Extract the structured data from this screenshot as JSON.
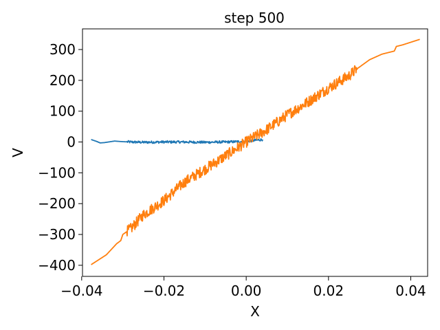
{
  "chart_data": {
    "type": "line",
    "title": "step 500",
    "xlabel": "X",
    "ylabel": "V",
    "xlim": [
      -0.0398,
      0.0441
    ],
    "ylim": [
      -436,
      367
    ],
    "grid": false,
    "legend": "none",
    "x_ticks": [
      -0.04,
      -0.02,
      0.0,
      0.02,
      0.04
    ],
    "x_tick_labels": [
      "−0.04",
      "−0.02",
      "0.00",
      "0.02",
      "0.04"
    ],
    "y_ticks": [
      -400,
      -300,
      -200,
      -100,
      0,
      100,
      200,
      300
    ],
    "y_tick_labels": [
      "−400",
      "−300",
      "−200",
      "−100",
      "0",
      "100",
      "200",
      "300"
    ],
    "series": [
      {
        "color": "#1f77b4",
        "noise": 4,
        "x": [
          -0.0377,
          -0.0364,
          -0.0355,
          -0.0345,
          -0.0335,
          -0.032,
          -0.03,
          -0.028,
          -0.025,
          -0.02,
          -0.015,
          -0.01,
          -0.005,
          0.0,
          0.002,
          0.004
        ],
        "y": [
          8,
          2,
          -3,
          -2,
          0,
          3,
          1,
          0,
          -1,
          0,
          0,
          -1,
          0,
          2,
          5,
          8
        ]
      },
      {
        "color": "#ff7f0e",
        "noise": 18,
        "x": [
          -0.0377,
          -0.034,
          -0.0315,
          -0.0305,
          -0.03,
          -0.028,
          -0.025,
          -0.02,
          -0.015,
          -0.01,
          -0.005,
          0.0,
          0.005,
          0.01,
          0.015,
          0.02,
          0.025,
          0.027,
          0.03,
          0.033,
          0.036,
          0.0365,
          0.038,
          0.0422
        ],
        "y": [
          -398,
          -366,
          -330,
          -320,
          -300,
          -281,
          -236,
          -190,
          -130,
          -88,
          -45,
          0,
          40,
          88,
          130,
          175,
          215,
          238,
          267,
          285,
          295,
          310,
          315,
          333
        ]
      }
    ]
  }
}
